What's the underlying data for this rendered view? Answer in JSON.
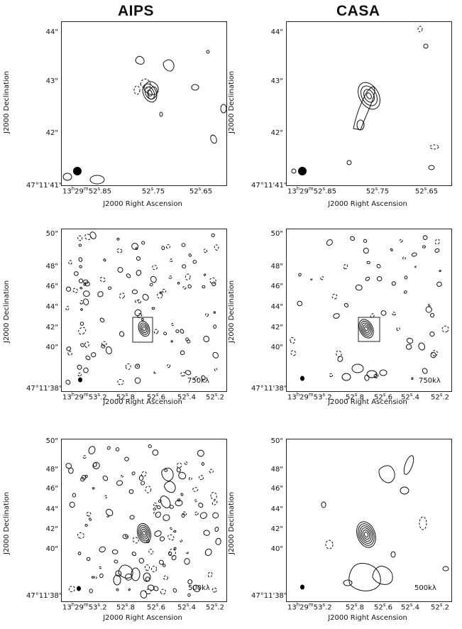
{
  "titles": {
    "left": "AIPS",
    "right": "CASA"
  },
  "panels": [
    {
      "id": "aips-top",
      "ylabel": "J2000 Declination",
      "xlabel": "J2000 Right Ascension",
      "yticks": [
        "44\"",
        "43\"",
        "42\""
      ],
      "y_origin": "47°11'41\"",
      "x_origin": "13h29m52s.85",
      "xticks": [
        "52s.75",
        "52s.65"
      ],
      "annotation": ""
    },
    {
      "id": "casa-top",
      "ylabel": "J2000 Declination",
      "xlabel": "J2000 Right Ascension",
      "yticks": [
        "44\"",
        "43\"",
        "42\""
      ],
      "y_origin": "47°11'41\"",
      "x_origin": "13h29m52s.85",
      "xticks": [
        "52s.75",
        "52s.65"
      ],
      "annotation": ""
    },
    {
      "id": "aips-mid",
      "ylabel": "J2000 Declination",
      "xlabel": "J2000 Right Ascension",
      "yticks": [
        "50\"",
        "48\"",
        "46\"",
        "44\"",
        "42\"",
        "40\""
      ],
      "y_origin": "47°11'38\"",
      "x_origin": "13h29m53s.2",
      "xticks": [
        "52s.8",
        "52s.6",
        "52s.4",
        "52s.2"
      ],
      "annotation": "750kλ"
    },
    {
      "id": "casa-mid",
      "ylabel": "J2000 Declination",
      "xlabel": "J2000 Right Ascension",
      "yticks": [
        "50\"",
        "48\"",
        "46\"",
        "44\"",
        "42\"",
        "40\""
      ],
      "y_origin": "47°11'38\"",
      "x_origin": "13h29m53s.2",
      "xticks": [
        "52s.8",
        "52s.6",
        "52s.4",
        "52s.2"
      ],
      "annotation": "750kλ"
    },
    {
      "id": "aips-bot",
      "ylabel": "J2000 Declination",
      "xlabel": "J2000 Right Ascension",
      "yticks": [
        "50\"",
        "48\"",
        "46\"",
        "44\"",
        "42\"",
        "40\""
      ],
      "y_origin": "47°11'38\"",
      "x_origin": "13h29m53s.2",
      "xticks": [
        "52s.8",
        "52s.6",
        "52s.4",
        "52s.2"
      ],
      "annotation": "500kλ"
    },
    {
      "id": "casa-bot",
      "ylabel": "J2000 Declination",
      "xlabel": "J2000 Right Ascension",
      "yticks": [
        "50\"",
        "48\"",
        "46\"",
        "44\"",
        "42\"",
        "40\""
      ],
      "y_origin": "47°11'38\"",
      "x_origin": "13h29m53s.2",
      "xticks": [
        "52s.8",
        "52s.6",
        "52s.4",
        "52s.2"
      ],
      "annotation": "500kλ"
    }
  ]
}
